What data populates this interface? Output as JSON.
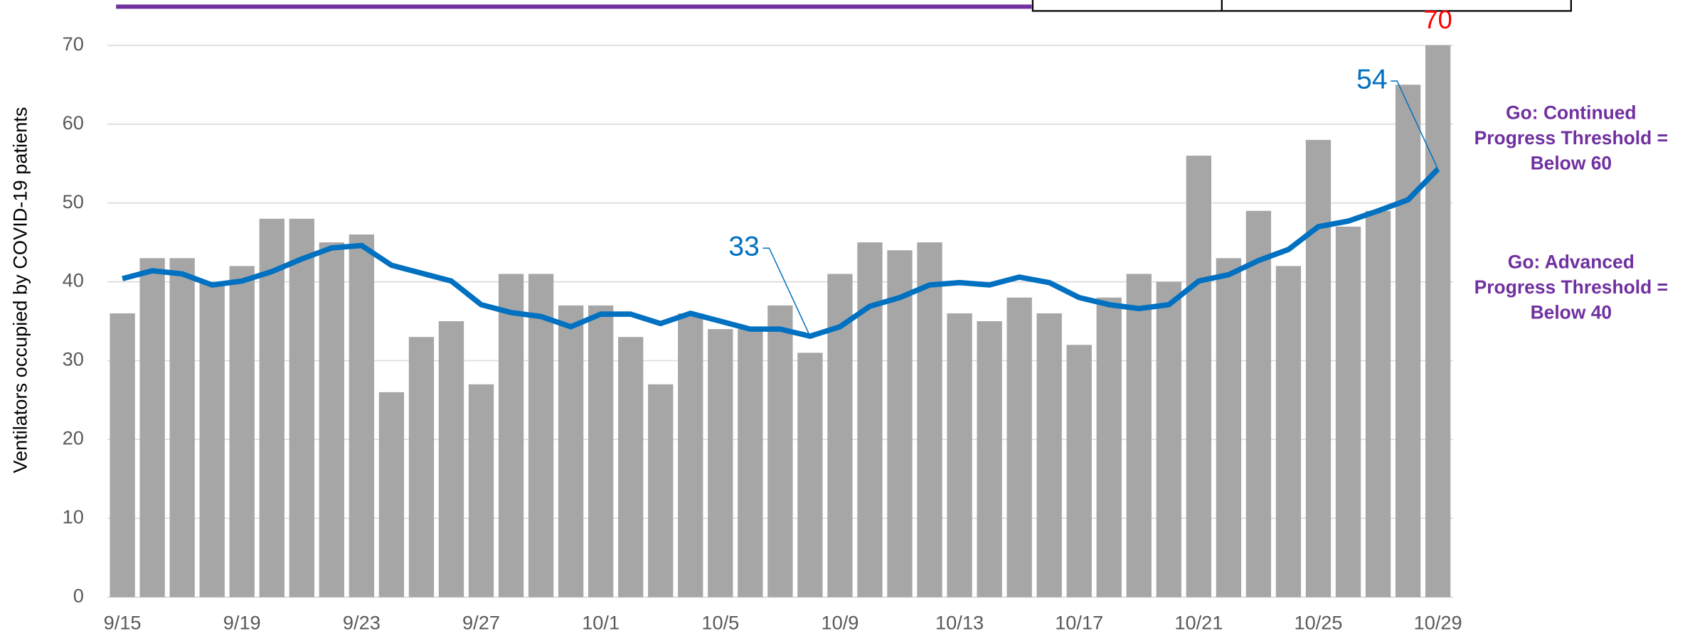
{
  "chart_data": {
    "type": "bar-line",
    "y_label": "Ventilators occupied by COVID-19 patients",
    "categories": [
      "9/15",
      null,
      null,
      null,
      "9/19",
      null,
      null,
      null,
      "9/23",
      null,
      null,
      null,
      "9/27",
      null,
      null,
      null,
      "10/1",
      null,
      null,
      null,
      "10/5",
      null,
      null,
      null,
      "10/9",
      null,
      null,
      null,
      "10/13",
      null,
      null,
      null,
      "10/17",
      null,
      null,
      null,
      "10/21",
      null,
      null,
      null,
      "10/25",
      null,
      null,
      null,
      "10/29"
    ],
    "series": [
      {
        "type": "bar",
        "color": "#a6a6a6",
        "values": [
          36,
          43,
          43,
          40,
          42,
          48,
          48,
          45,
          46,
          26,
          33,
          35,
          27,
          41,
          41,
          37,
          37,
          33,
          27,
          36,
          34,
          34,
          37,
          31,
          41,
          45,
          44,
          45,
          36,
          35,
          38,
          36,
          32,
          38,
          41,
          40,
          56,
          43,
          49,
          42,
          58,
          47,
          49,
          65,
          70
        ],
        "value_labels": [
          null,
          null,
          null,
          null,
          null,
          null,
          null,
          null,
          null,
          null,
          null,
          null,
          null,
          null,
          null,
          null,
          null,
          null,
          null,
          null,
          null,
          null,
          null,
          null,
          null,
          null,
          null,
          null,
          null,
          null,
          null,
          null,
          null,
          null,
          null,
          null,
          null,
          null,
          null,
          null,
          null,
          null,
          null,
          null,
          "70"
        ],
        "label_color": "#ff0000"
      },
      {
        "type": "line",
        "color": "#0070c0",
        "values": [
          40.4,
          41.4,
          41,
          39.6,
          40.1,
          41.3,
          42.9,
          44.3,
          44.6,
          42.1,
          41.1,
          40.1,
          37.1,
          36.1,
          35.6,
          34.3,
          35.9,
          35.9,
          34.7,
          36,
          35,
          34,
          34,
          33.1,
          34.3,
          36.9,
          38,
          39.6,
          39.9,
          39.6,
          40.6,
          39.9,
          38,
          37.1,
          36.6,
          37.1,
          40.1,
          40.9,
          42.7,
          44.1,
          47,
          47.7,
          49,
          50.4,
          54.3
        ],
        "value_labels": [
          null,
          null,
          null,
          null,
          null,
          null,
          null,
          null,
          null,
          null,
          null,
          null,
          null,
          null,
          null,
          null,
          null,
          null,
          null,
          null,
          null,
          null,
          null,
          "33",
          null,
          null,
          null,
          null,
          null,
          null,
          null,
          null,
          null,
          null,
          null,
          null,
          null,
          null,
          null,
          null,
          null,
          null,
          null,
          null,
          "54"
        ]
      }
    ],
    "ylim": [
      0,
      70
    ],
    "yticks": [
      0,
      10,
      20,
      30,
      40,
      50,
      60,
      70
    ],
    "grid": true,
    "annotations": [
      {
        "lines": [
          "Go: Continued",
          "Progress Threshold =",
          "Below 60"
        ],
        "color": "#7030a0"
      },
      {
        "lines": [
          "Go: Advanced",
          "Progress Threshold =",
          "Below 40"
        ],
        "color": "#7030a0"
      }
    ]
  }
}
